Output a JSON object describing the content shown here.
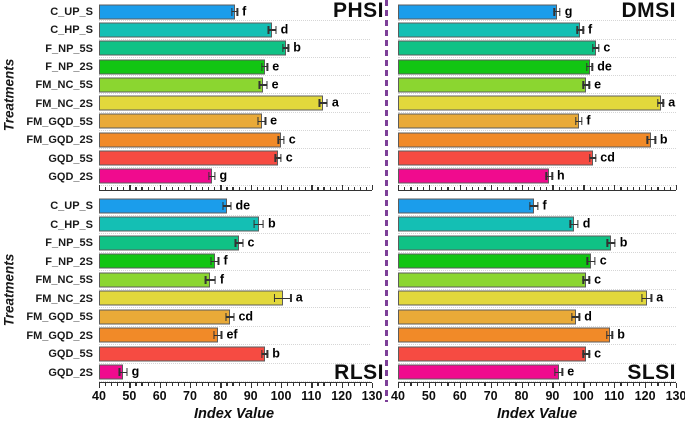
{
  "figure": {
    "description": "Four-panel horizontal bar chart of stress indices by treatment"
  },
  "y_axis": {
    "label": "Treatments"
  },
  "x_axis": {
    "label": "Index Value",
    "min": 40,
    "max": 130,
    "major_tick_step": 10,
    "minor_tick_step": 2,
    "tick_labels": [
      "40",
      "50",
      "60",
      "70",
      "80",
      "90",
      "100",
      "110",
      "120",
      "130"
    ]
  },
  "treatments": [
    "C_UP_S",
    "C_HP_S",
    "F_NP_5S",
    "F_NP_2S",
    "FM_NC_5S",
    "FM_NC_2S",
    "FM_GQD_5S",
    "FM_GQD_2S",
    "GQD_5S",
    "GQD_2S"
  ],
  "bar_colors": [
    "#1b9deb",
    "#14bfb4",
    "#10c285",
    "#12c513",
    "#8bd630",
    "#e2d83c",
    "#e9aa38",
    "#f18a28",
    "#f64b42",
    "#f00b8e"
  ],
  "divider_color": "#7d3f98",
  "chart_data": [
    {
      "id": "phsi",
      "title": "PHSI",
      "type": "bar",
      "orientation": "horizontal",
      "xlabel": "Index Value",
      "ylabel": "Treatments",
      "xlim": [
        40,
        130
      ],
      "categories": [
        "C_UP_S",
        "C_HP_S",
        "F_NP_5S",
        "F_NP_2S",
        "FM_NC_5S",
        "FM_NC_2S",
        "FM_GQD_5S",
        "FM_GQD_2S",
        "GQD_5S",
        "GQD_2S"
      ],
      "values": [
        85,
        97.5,
        102,
        95,
        94.5,
        114.5,
        94,
        100.5,
        99.5,
        77.5
      ],
      "errors": [
        1.2,
        1.5,
        1.2,
        1.2,
        1.5,
        1.5,
        1.5,
        1.2,
        1.2,
        1.2
      ],
      "sig_letters": [
        "f",
        "d",
        "b",
        "e",
        "e",
        "a",
        "e",
        "c",
        "c",
        "g"
      ]
    },
    {
      "id": "dmsi",
      "title": "DMSI",
      "type": "bar",
      "orientation": "horizontal",
      "xlabel": "Index Value",
      "ylabel": "Treatments",
      "xlim": [
        40,
        130
      ],
      "categories": [
        "C_UP_S",
        "C_HP_S",
        "F_NP_5S",
        "F_NP_2S",
        "FM_NC_5S",
        "FM_NC_2S",
        "FM_GQD_5S",
        "FM_GQD_2S",
        "GQD_5S",
        "GQD_2S"
      ],
      "values": [
        91.5,
        99,
        104,
        102,
        101,
        125,
        98.5,
        122,
        103,
        89
      ],
      "errors": [
        1.2,
        1.2,
        1.2,
        1.2,
        1.2,
        1.2,
        1.2,
        1.5,
        1.2,
        1.2
      ],
      "sig_letters": [
        "g",
        "f",
        "c",
        "de",
        "e",
        "a",
        "f",
        "b",
        "cd",
        "h"
      ]
    },
    {
      "id": "rlsi",
      "title": "RLSI",
      "type": "bar",
      "orientation": "horizontal",
      "xlabel": "Index Value",
      "ylabel": "Treatments",
      "xlim": [
        40,
        130
      ],
      "categories": [
        "C_UP_S",
        "C_HP_S",
        "F_NP_5S",
        "F_NP_2S",
        "FM_NC_5S",
        "FM_NC_2S",
        "FM_GQD_5S",
        "FM_GQD_2S",
        "GQD_5S",
        "GQD_2S"
      ],
      "values": [
        82.5,
        93,
        86.5,
        78.5,
        77,
        101,
        83.5,
        79.5,
        95,
        48
      ],
      "errors": [
        1.5,
        1.8,
        1.5,
        1.5,
        1.8,
        3.0,
        1.5,
        1.5,
        1.2,
        1.5
      ],
      "sig_letters": [
        "de",
        "b",
        "c",
        "f",
        "f",
        "a",
        "cd",
        "ef",
        "b",
        "g"
      ]
    },
    {
      "id": "slsi",
      "title": "SLSI",
      "type": "bar",
      "orientation": "horizontal",
      "xlabel": "Index Value",
      "ylabel": "Treatments",
      "xlim": [
        40,
        130
      ],
      "categories": [
        "C_UP_S",
        "C_HP_S",
        "F_NP_5S",
        "F_NP_2S",
        "FM_NC_5S",
        "FM_NC_2S",
        "FM_GQD_5S",
        "FM_GQD_2S",
        "GQD_5S",
        "GQD_2S"
      ],
      "values": [
        84,
        97,
        109,
        102.5,
        101,
        120.5,
        97.5,
        108.5,
        101,
        92
      ],
      "errors": [
        1.5,
        1.5,
        1.5,
        1.5,
        1.2,
        1.8,
        1.5,
        1.2,
        1.2,
        1.5
      ],
      "sig_letters": [
        "f",
        "d",
        "b",
        "c",
        "c",
        "a",
        "d",
        "b",
        "c",
        "e"
      ]
    }
  ]
}
